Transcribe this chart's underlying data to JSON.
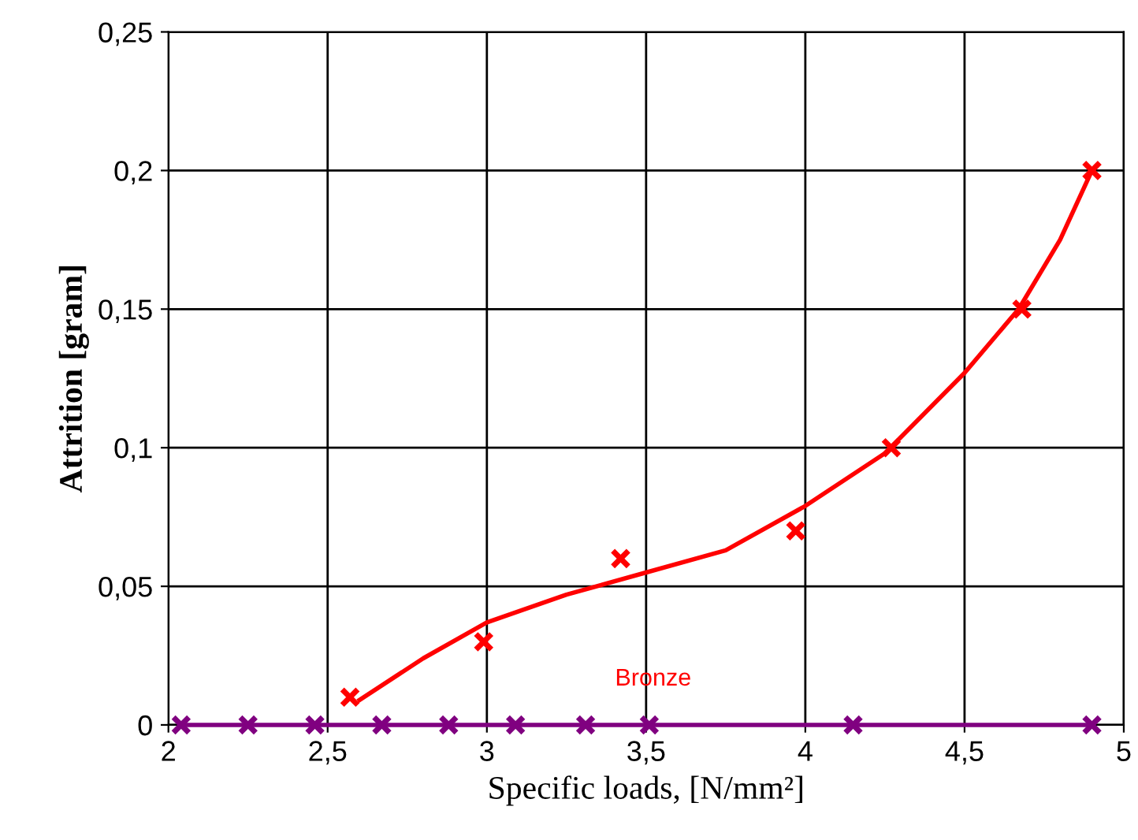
{
  "chart_data": {
    "type": "line",
    "xlabel": "Specific loads, [N/mm²]",
    "ylabel": "Attrition [gram]",
    "xlim": [
      2,
      5
    ],
    "ylim": [
      0,
      0.25
    ],
    "xticks": [
      2,
      {
        "value": 2.5,
        "label": "2,5"
      },
      3,
      {
        "value": 3.5,
        "label": "3,5"
      },
      4,
      {
        "value": 4.5,
        "label": "4,5"
      },
      5
    ],
    "yticks": [
      0,
      {
        "value": 0.05,
        "label": "0,05"
      },
      {
        "value": 0.1,
        "label": "0,1"
      },
      {
        "value": 0.15,
        "label": "0,15"
      },
      {
        "value": 0.2,
        "label": "0,2"
      },
      {
        "value": 0.25,
        "label": "0,25"
      }
    ],
    "grid": true,
    "legend": false,
    "marker": "cross",
    "series": [
      {
        "type": "line",
        "color": "#ff0000",
        "marker": "none",
        "x": [
          2.6,
          2.8,
          3.0,
          3.25,
          3.5,
          3.75,
          4.0,
          4.25,
          4.5,
          4.67,
          4.8,
          4.9
        ],
        "values": [
          0.009,
          0.024,
          0.037,
          0.047,
          0.055,
          0.063,
          0.079,
          0.098,
          0.127,
          0.15,
          0.175,
          0.2
        ]
      },
      {
        "type": "scatter",
        "name": "Bronze",
        "color": "#ff0000",
        "x": [
          2.57,
          2.99,
          3.42,
          3.97,
          4.27,
          4.68,
          4.9
        ],
        "values": [
          0.01,
          0.03,
          0.06,
          0.07,
          0.1,
          0.15,
          0.2
        ]
      },
      {
        "color": "#800080",
        "x": [
          2.04,
          2.25,
          2.46,
          2.67,
          2.88,
          3.09,
          3.31,
          3.51,
          4.15,
          4.9
        ],
        "values": [
          0,
          0,
          0,
          0,
          0,
          0,
          0,
          0,
          0,
          0
        ]
      }
    ]
  }
}
